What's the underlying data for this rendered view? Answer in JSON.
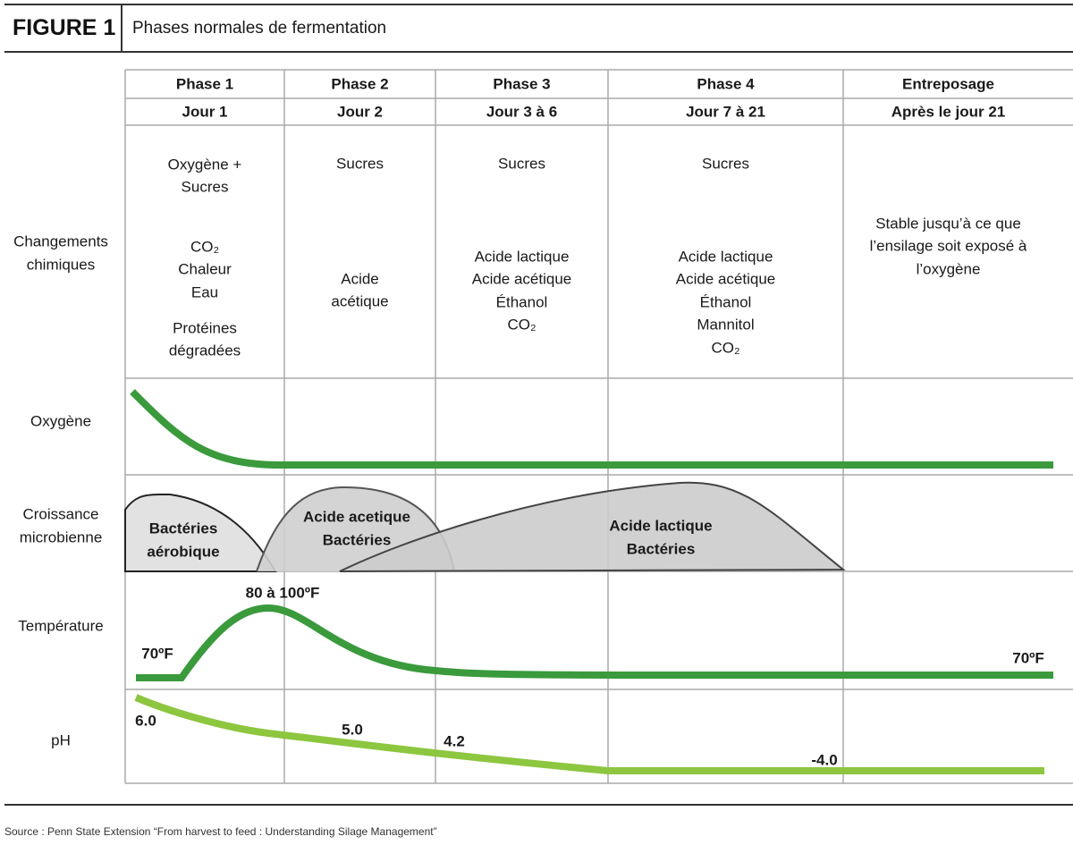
{
  "header": {
    "label": "FIGURE 1",
    "title": "Phases normales de fermentation"
  },
  "columns": [
    {
      "phase": "Phase 1",
      "day": "Jour 1",
      "chemistry": [
        [
          "Oxygène +",
          "Sucres"
        ],
        [
          "CO₂",
          "Chaleur",
          "Eau"
        ],
        [
          "Protéines",
          "dégradées"
        ]
      ]
    },
    {
      "phase": "Phase 2",
      "day": "Jour 2",
      "chemistry": [
        [
          "Sucres"
        ],
        [
          "Acide",
          "acétique"
        ]
      ]
    },
    {
      "phase": "Phase 3",
      "day": "Jour 3 à 6",
      "chemistry": [
        [
          "Sucres"
        ],
        [
          "Acide lactique",
          "Acide acétique",
          "Éthanol",
          "CO₂"
        ]
      ]
    },
    {
      "phase": "Phase 4",
      "day": "Jour 7 à 21",
      "chemistry": [
        [
          "Sucres"
        ],
        [
          "Acide lactique",
          "Acide acétique",
          "Éthanol",
          "Mannitol",
          "CO₂"
        ]
      ]
    },
    {
      "phase": "Entreposage",
      "day": "Après le jour 21",
      "chemistry": [
        [
          "Stable jusqu’à ce que",
          "l’ensilage soit exposé à",
          "l’oxygène"
        ]
      ]
    }
  ],
  "row_labels": [
    [
      "Changements",
      "chimiques"
    ],
    [
      "Oxygène"
    ],
    [
      "Croissance",
      "microbienne"
    ],
    [
      "Température"
    ],
    [
      "pH"
    ]
  ],
  "microbes": [
    [
      "Bactéries",
      "aérobique"
    ],
    [
      "Acide acetique",
      "Bactéries"
    ],
    [
      "Acide lactique",
      "Bactéries"
    ]
  ],
  "temperature_labels": [
    "70ºF",
    "80 à 100ºF",
    "70ºF"
  ],
  "ph_labels": [
    "6.0",
    "5.0",
    "4.2",
    "-4.0"
  ],
  "source": "Source : Penn State Extension “From harvest to feed : Understanding Silage Management”"
}
